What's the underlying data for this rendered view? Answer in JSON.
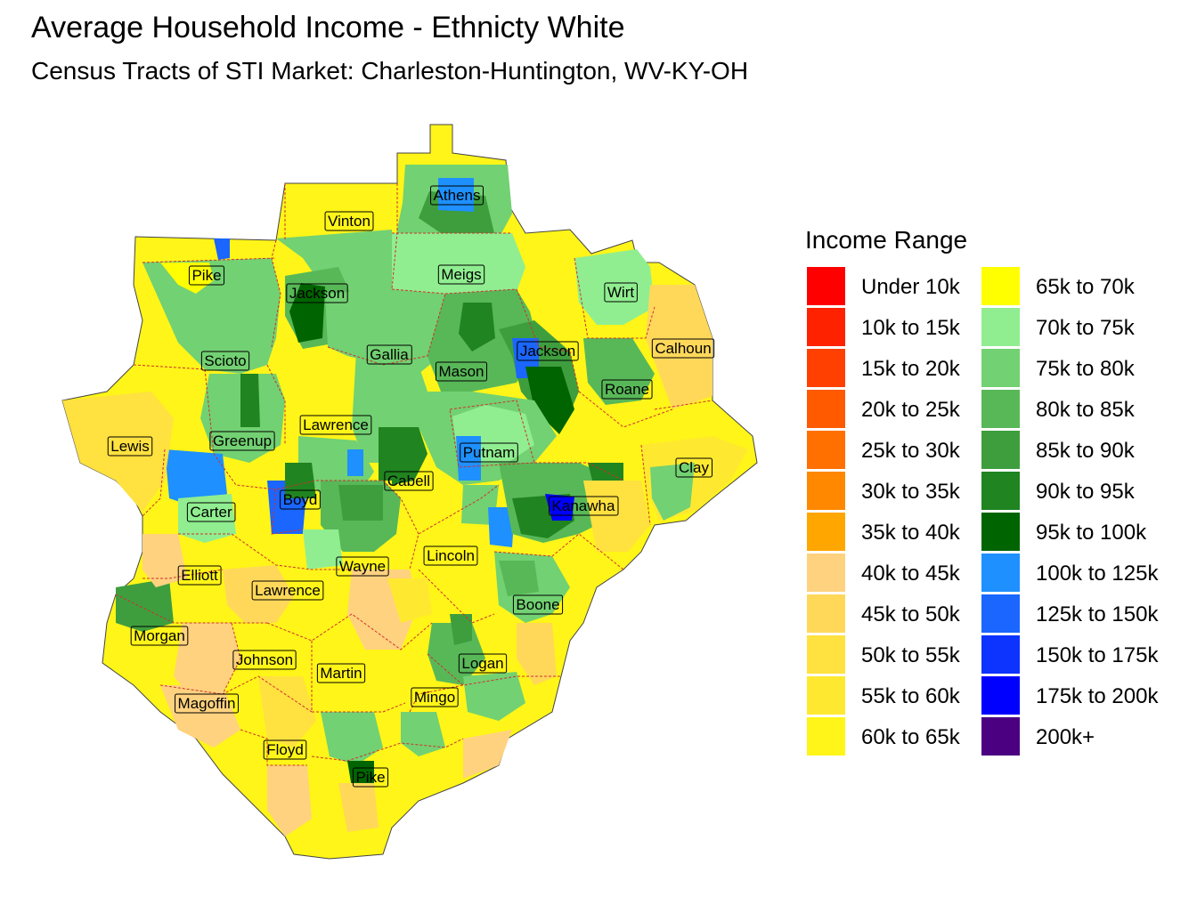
{
  "title": "Average Household Income - Ethnicty White",
  "subtitle": "Census Tracts of STI Market: Charleston-Huntington, WV-KY-OH",
  "legend": {
    "title": "Income Range",
    "items": [
      {
        "label": "Under 10k",
        "color": "#FF0000"
      },
      {
        "label": "10k to 15k",
        "color": "#FF2200"
      },
      {
        "label": "15k to 20k",
        "color": "#FF4000"
      },
      {
        "label": "20k to 25k",
        "color": "#FF5A00"
      },
      {
        "label": "25k to 30k",
        "color": "#FF7000"
      },
      {
        "label": "30k to 35k",
        "color": "#FF8800"
      },
      {
        "label": "35k to 40k",
        "color": "#FFA600"
      },
      {
        "label": "40k to 45k",
        "color": "#FFD27F"
      },
      {
        "label": "45k to 50k",
        "color": "#FFD85A"
      },
      {
        "label": "50k to 55k",
        "color": "#FFE140"
      },
      {
        "label": "55k to 60k",
        "color": "#FFE930"
      },
      {
        "label": "60k to 65k",
        "color": "#FFF518"
      },
      {
        "label": "65k to 70k",
        "color": "#FFFF00"
      },
      {
        "label": "70k to 75k",
        "color": "#90EE90"
      },
      {
        "label": "75k to 80k",
        "color": "#72D172"
      },
      {
        "label": "80k to 85k",
        "color": "#58B858"
      },
      {
        "label": "85k to 90k",
        "color": "#3E9E3E"
      },
      {
        "label": "90k to 95k",
        "color": "#208420"
      },
      {
        "label": "95k to 100k",
        "color": "#006400"
      },
      {
        "label": "100k to 125k",
        "color": "#1E90FF"
      },
      {
        "label": "125k to 150k",
        "color": "#1A66FF"
      },
      {
        "label": "150k to 175k",
        "color": "#0D33FF"
      },
      {
        "label": "175k to 200k",
        "color": "#0000FF"
      },
      {
        "label": "200k+",
        "color": "#4B0082"
      }
    ]
  },
  "counties": [
    {
      "name": "Athens"
    },
    {
      "name": "Vinton"
    },
    {
      "name": "Pike"
    },
    {
      "name": "Jackson"
    },
    {
      "name": "Meigs"
    },
    {
      "name": "Wirt"
    },
    {
      "name": "Scioto"
    },
    {
      "name": "Gallia"
    },
    {
      "name": "Mason"
    },
    {
      "name": "Jackson"
    },
    {
      "name": "Calhoun"
    },
    {
      "name": "Roane"
    },
    {
      "name": "Lewis"
    },
    {
      "name": "Greenup"
    },
    {
      "name": "Lawrence"
    },
    {
      "name": "Putnam"
    },
    {
      "name": "Clay"
    },
    {
      "name": "Carter"
    },
    {
      "name": "Boyd"
    },
    {
      "name": "Cabell"
    },
    {
      "name": "Kanawha"
    },
    {
      "name": "Elliott"
    },
    {
      "name": "Wayne"
    },
    {
      "name": "Lincoln"
    },
    {
      "name": "Lawrence"
    },
    {
      "name": "Boone"
    },
    {
      "name": "Morgan"
    },
    {
      "name": "Johnson"
    },
    {
      "name": "Martin"
    },
    {
      "name": "Logan"
    },
    {
      "name": "Magoffin"
    },
    {
      "name": "Mingo"
    },
    {
      "name": "Floyd"
    },
    {
      "name": "Pike"
    }
  ]
}
